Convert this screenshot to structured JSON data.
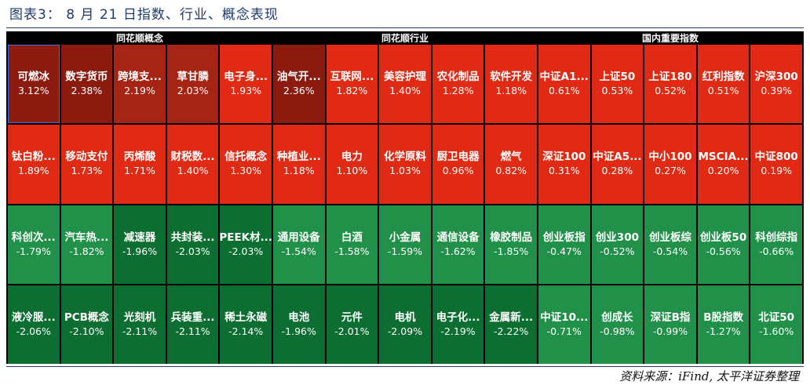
{
  "title": "图表3： 8 月 21 日指数、行业、概念表现",
  "source": "资料来源：iFind, 太平洋证券整理",
  "colors": {
    "pos_strong": "#8b1a0f",
    "pos_mid": "#a52414",
    "pos": "#e02a14",
    "neg": "#21914a",
    "neg_dark": "#0c6e30"
  },
  "chart_data": {
    "type": "heatmap",
    "groups": [
      "同花顺概念",
      "同花顺行业",
      "国内重要指数"
    ],
    "rows": [
      [
        {
          "name": "可燃冰",
          "value": "3.12%"
        },
        {
          "name": "数字货币",
          "value": "2.38%"
        },
        {
          "name": "跨境支...",
          "value": "2.19%"
        },
        {
          "name": "草甘膦",
          "value": "2.03%"
        },
        {
          "name": "电子身...",
          "value": "1.93%"
        },
        {
          "name": "油气开...",
          "value": "2.36%"
        },
        {
          "name": "互联网...",
          "value": "1.82%"
        },
        {
          "name": "美容护理",
          "value": "1.40%"
        },
        {
          "name": "农化制品",
          "value": "1.28%"
        },
        {
          "name": "软件开发",
          "value": "1.18%"
        },
        {
          "name": "中证A1...",
          "value": "0.61%"
        },
        {
          "name": "上证50",
          "value": "0.53%"
        },
        {
          "name": "上证180",
          "value": "0.52%"
        },
        {
          "name": "红利指数",
          "value": "0.51%"
        },
        {
          "name": "沪深300",
          "value": "0.39%"
        }
      ],
      [
        {
          "name": "钛白粉...",
          "value": "1.89%"
        },
        {
          "name": "移动支付",
          "value": "1.73%"
        },
        {
          "name": "丙烯酸",
          "value": "1.71%"
        },
        {
          "name": "财税数...",
          "value": "1.40%"
        },
        {
          "name": "信托概念",
          "value": "1.30%"
        },
        {
          "name": "种植业...",
          "value": "1.18%"
        },
        {
          "name": "电力",
          "value": "1.10%"
        },
        {
          "name": "化学原料",
          "value": "1.03%"
        },
        {
          "name": "厨卫电器",
          "value": "0.96%"
        },
        {
          "name": "燃气",
          "value": "0.82%"
        },
        {
          "name": "深证100",
          "value": "0.31%"
        },
        {
          "name": "中证A5...",
          "value": "0.28%"
        },
        {
          "name": "中小100",
          "value": "0.27%"
        },
        {
          "name": "MSCIA...",
          "value": "0.20%"
        },
        {
          "name": "中证800",
          "value": "0.19%"
        }
      ],
      [
        {
          "name": "科创次...",
          "value": "-1.79%"
        },
        {
          "name": "汽车热...",
          "value": "-1.82%"
        },
        {
          "name": "减速器",
          "value": "-1.96%"
        },
        {
          "name": "共封装...",
          "value": "-2.03%"
        },
        {
          "name": "PEEK材...",
          "value": "-2.03%"
        },
        {
          "name": "通用设备",
          "value": "-1.54%"
        },
        {
          "name": "白酒",
          "value": "-1.58%"
        },
        {
          "name": "小金属",
          "value": "-1.59%"
        },
        {
          "name": "通信设备",
          "value": "-1.62%"
        },
        {
          "name": "橡胶制品",
          "value": "-1.85%"
        },
        {
          "name": "创业板指",
          "value": "-0.47%"
        },
        {
          "name": "创业300",
          "value": "-0.52%"
        },
        {
          "name": "创业板综",
          "value": "-0.54%"
        },
        {
          "name": "创业板50",
          "value": "-0.56%"
        },
        {
          "name": "科创综指",
          "value": "-0.66%"
        }
      ],
      [
        {
          "name": "液冷服...",
          "value": "-2.06%"
        },
        {
          "name": "PCB概念",
          "value": "-2.10%"
        },
        {
          "name": "光刻机",
          "value": "-2.11%"
        },
        {
          "name": "兵装重...",
          "value": "-2.11%"
        },
        {
          "name": "稀土永磁",
          "value": "-2.14%"
        },
        {
          "name": "电池",
          "value": "-1.96%"
        },
        {
          "name": "元件",
          "value": "-2.01%"
        },
        {
          "name": "电机",
          "value": "-2.09%"
        },
        {
          "name": "电子化...",
          "value": "-2.19%"
        },
        {
          "name": "金属新...",
          "value": "-2.22%"
        },
        {
          "name": "中证10...",
          "value": "-0.71%"
        },
        {
          "name": "创成长",
          "value": "-0.98%"
        },
        {
          "name": "深证B指",
          "value": "-0.99%"
        },
        {
          "name": "B股指数",
          "value": "-1.27%"
        },
        {
          "name": "北证50",
          "value": "-1.60%"
        }
      ]
    ]
  }
}
